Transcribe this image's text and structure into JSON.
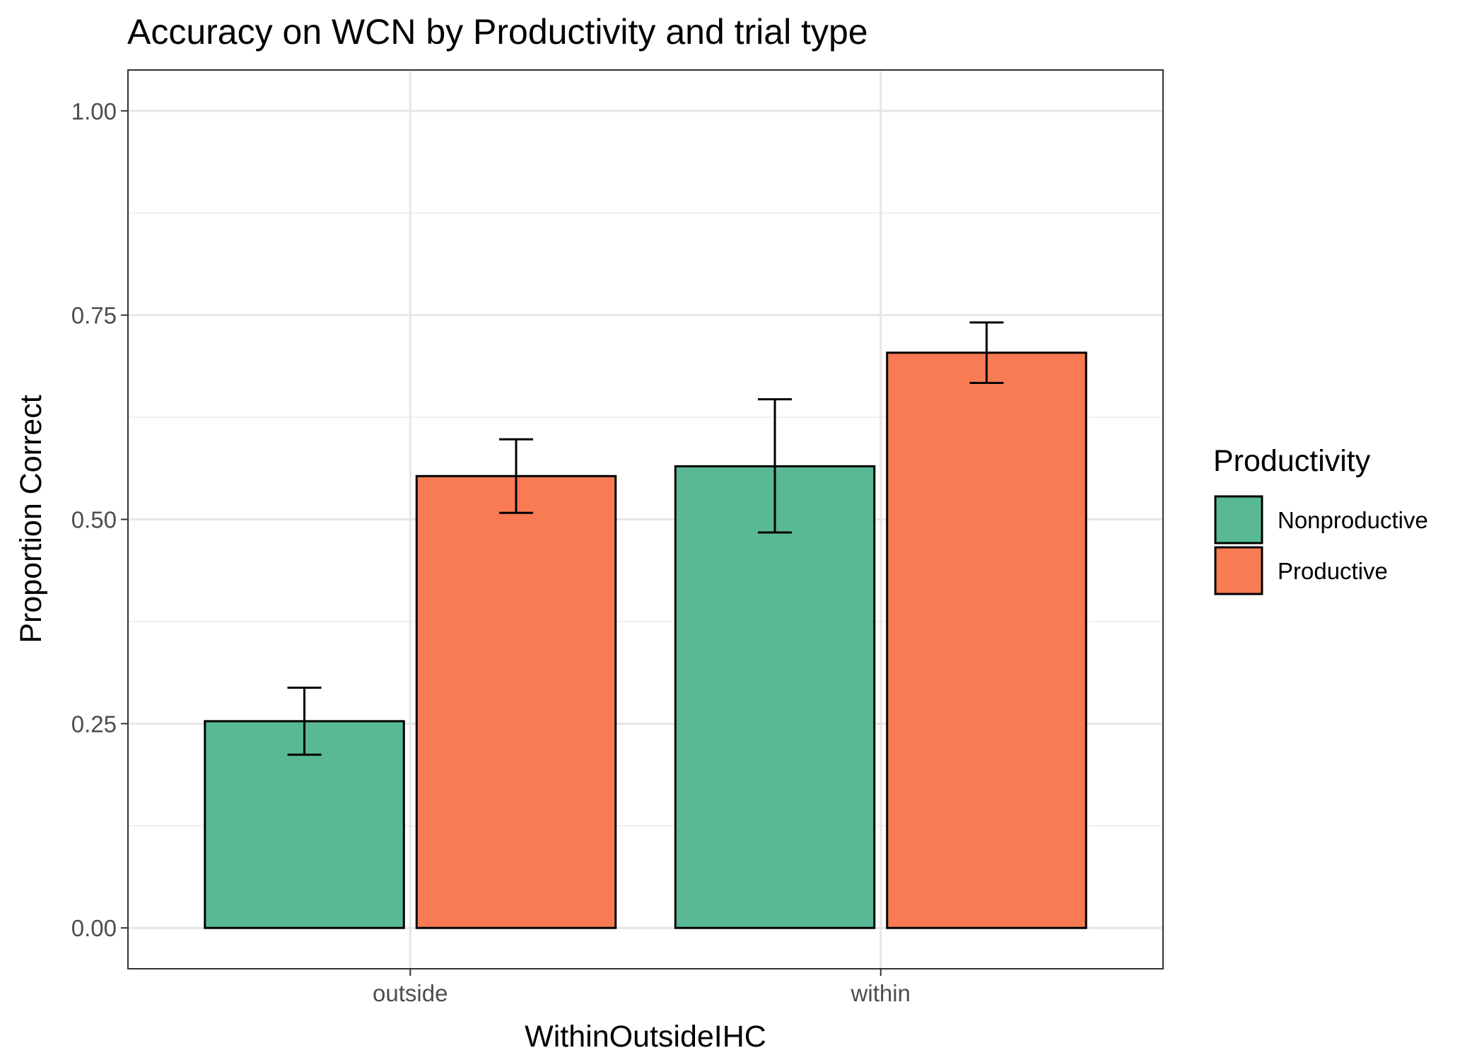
{
  "chart_data": {
    "type": "bar",
    "title": "Accuracy on WCN by Productivity and trial type",
    "xlabel": "WithinOutsideIHC",
    "ylabel": "Proportion Correct",
    "categories": [
      "outside",
      "within"
    ],
    "ylim": [
      -0.05,
      1.05
    ],
    "yticks": [
      0.0,
      0.25,
      0.5,
      0.75,
      1.0
    ],
    "ytick_labels": [
      "0.00",
      "0.25",
      "0.50",
      "0.75",
      "1.00"
    ],
    "grid": true,
    "legend": {
      "title": "Productivity",
      "position": "right"
    },
    "series": [
      {
        "name": "Nonproductive",
        "color": "#59b994",
        "values": [
          0.253,
          0.565
        ],
        "error_low": [
          0.212,
          0.484
        ],
        "error_high": [
          0.294,
          0.647
        ]
      },
      {
        "name": "Productive",
        "color": "#f87b53",
        "values": [
          0.553,
          0.704
        ],
        "error_low": [
          0.508,
          0.667
        ],
        "error_high": [
          0.598,
          0.741
        ]
      }
    ]
  }
}
